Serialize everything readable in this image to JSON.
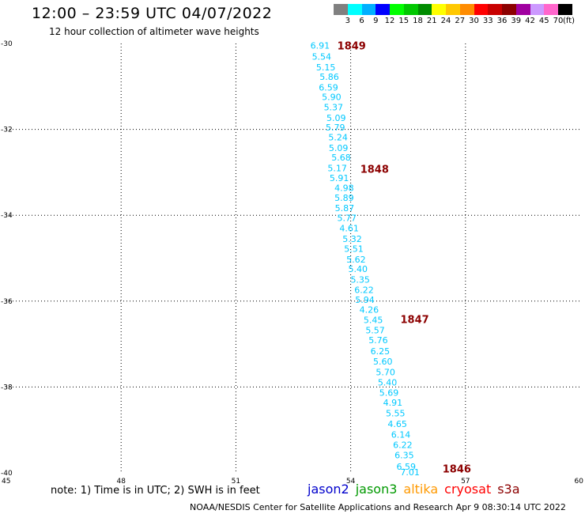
{
  "header": {
    "title": "12:00 – 23:59 UTC 04/07/2022",
    "subtitle": "12 hour collection of altimeter wave heights"
  },
  "legend": {
    "colors": [
      "#808080",
      "#00ffff",
      "#00b0ff",
      "#0000ff",
      "#00ff00",
      "#00c800",
      "#008c00",
      "#ffff00",
      "#ffc800",
      "#ff8c00",
      "#ff0000",
      "#c80000",
      "#8c0000",
      "#a000a0",
      "#cc99ff",
      "#ff66cc",
      "#000000"
    ],
    "labels": [
      "3",
      "6",
      "9",
      "12",
      "15",
      "18",
      "21",
      "24",
      "27",
      "30",
      "33",
      "36",
      "39",
      "42",
      "45",
      "70"
    ],
    "unit": "(ft)"
  },
  "chart_data": {
    "type": "scatter",
    "title": "12:00 – 23:59 UTC 04/07/2022",
    "subtitle": "12 hour collection of altimeter wave heights",
    "xlim": [
      45,
      60
    ],
    "ylim": [
      -40,
      -30
    ],
    "x_ticks": [
      "45",
      "48",
      "51",
      "54",
      "57",
      "60"
    ],
    "y_ticks": [
      "-30",
      "-32",
      "-34",
      "-36",
      "-38",
      "-40"
    ],
    "grid": true,
    "series": [
      {
        "color": "#00c8ff",
        "points": [
          {
            "lon": 53.2,
            "lat": -30.05,
            "v": "6.91"
          },
          {
            "lon": 53.24,
            "lat": -30.3,
            "v": "5.54"
          },
          {
            "lon": 53.35,
            "lat": -30.55,
            "v": "5.15"
          },
          {
            "lon": 53.44,
            "lat": -30.77,
            "v": "5.86"
          },
          {
            "lon": 53.42,
            "lat": -31.02,
            "v": "6.59"
          },
          {
            "lon": 53.5,
            "lat": -31.24,
            "v": "5.90"
          },
          {
            "lon": 53.55,
            "lat": -31.48,
            "v": "5.37"
          },
          {
            "lon": 53.62,
            "lat": -31.73,
            "v": "5.09"
          },
          {
            "lon": 53.6,
            "lat": -31.95,
            "v": "5.79"
          },
          {
            "lon": 53.67,
            "lat": -32.18,
            "v": "5.24"
          },
          {
            "lon": 53.68,
            "lat": -32.43,
            "v": "5.09"
          },
          {
            "lon": 53.75,
            "lat": -32.65,
            "v": "5.68"
          },
          {
            "lon": 53.65,
            "lat": -32.9,
            "v": "5.17"
          },
          {
            "lon": 53.7,
            "lat": -33.13,
            "v": "5.91"
          },
          {
            "lon": 53.83,
            "lat": -33.36,
            "v": "4.98"
          },
          {
            "lon": 53.83,
            "lat": -33.59,
            "v": "5.89"
          },
          {
            "lon": 53.84,
            "lat": -33.83,
            "v": "5.87"
          },
          {
            "lon": 53.9,
            "lat": -34.06,
            "v": "5.77"
          },
          {
            "lon": 53.96,
            "lat": -34.3,
            "v": "4.61"
          },
          {
            "lon": 54.04,
            "lat": -34.55,
            "v": "5.32"
          },
          {
            "lon": 54.08,
            "lat": -34.78,
            "v": "5.51"
          },
          {
            "lon": 54.14,
            "lat": -35.03,
            "v": "5.62"
          },
          {
            "lon": 54.19,
            "lat": -35.25,
            "v": "5.40"
          },
          {
            "lon": 54.25,
            "lat": -35.5,
            "v": "5.35"
          },
          {
            "lon": 54.35,
            "lat": -35.74,
            "v": "6.22"
          },
          {
            "lon": 54.37,
            "lat": -35.97,
            "v": "5.94"
          },
          {
            "lon": 54.48,
            "lat": -36.2,
            "v": "4.26"
          },
          {
            "lon": 54.59,
            "lat": -36.44,
            "v": "5.45"
          },
          {
            "lon": 54.64,
            "lat": -36.68,
            "v": "5.57"
          },
          {
            "lon": 54.72,
            "lat": -36.91,
            "v": "5.76"
          },
          {
            "lon": 54.77,
            "lat": -37.16,
            "v": "6.25"
          },
          {
            "lon": 54.84,
            "lat": -37.4,
            "v": "5.60"
          },
          {
            "lon": 54.91,
            "lat": -37.65,
            "v": "5.70"
          },
          {
            "lon": 54.96,
            "lat": -37.89,
            "v": "5.40"
          },
          {
            "lon": 55.0,
            "lat": -38.13,
            "v": "5.69"
          },
          {
            "lon": 55.1,
            "lat": -38.36,
            "v": "4.91"
          },
          {
            "lon": 55.17,
            "lat": -38.61,
            "v": "5.55"
          },
          {
            "lon": 55.22,
            "lat": -38.86,
            "v": "4.65"
          },
          {
            "lon": 55.31,
            "lat": -39.11,
            "v": "6.14"
          },
          {
            "lon": 55.36,
            "lat": -39.35,
            "v": "6.22"
          },
          {
            "lon": 55.4,
            "lat": -39.59,
            "v": "6.35"
          },
          {
            "lon": 55.45,
            "lat": -39.85,
            "v": "6.59"
          },
          {
            "lon": 55.55,
            "lat": -39.98,
            "v": "7.01"
          }
        ]
      }
    ],
    "annotations": [
      {
        "lon": 53.65,
        "lat": -30.05,
        "text": "1849",
        "color": "#8c0000"
      },
      {
        "lon": 54.25,
        "lat": -32.92,
        "text": "1848",
        "color": "#8c0000"
      },
      {
        "lon": 55.3,
        "lat": -36.42,
        "text": "1847",
        "color": "#8c0000"
      },
      {
        "lon": 56.4,
        "lat": -39.9,
        "text": "1846",
        "color": "#8c0000"
      }
    ]
  },
  "footer": {
    "note": "note:  1) Time is in UTC;  2) SWH is in feet",
    "satellites": [
      {
        "name": "jason2",
        "color": "#0000cc"
      },
      {
        "name": "jason3",
        "color": "#009900"
      },
      {
        "name": "altika",
        "color": "#ff9900"
      },
      {
        "name": "cryosat",
        "color": "#ff0000"
      },
      {
        "name": "s3a",
        "color": "#8c0000"
      }
    ],
    "credit": "NOAA/NESDIS Center for Satellite Applications and Research    Apr  9 08:30:14 UTC 2022"
  }
}
